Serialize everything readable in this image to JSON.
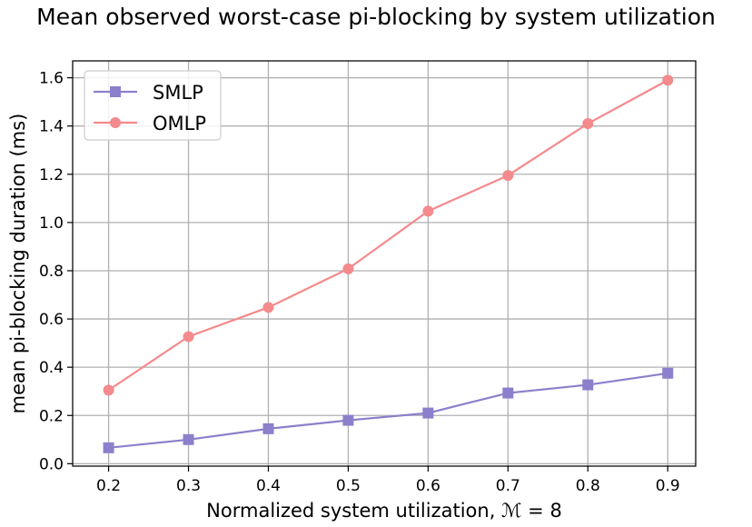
{
  "chart_data": {
    "type": "line",
    "title": "Mean observed worst-case pi-blocking by system utilization",
    "xlabel": "Normalized system utilization, ℳ = 8",
    "ylabel": "mean pi-blocking duration (ms)",
    "x": [
      0.2,
      0.3,
      0.4,
      0.5,
      0.6,
      0.7,
      0.8,
      0.9
    ],
    "x_tick_labels": [
      "0.2",
      "0.3",
      "0.4",
      "0.5",
      "0.6",
      "0.7",
      "0.8",
      "0.9"
    ],
    "y_tick_values": [
      0.0,
      0.2,
      0.4,
      0.6,
      0.8,
      1.0,
      1.2,
      1.4,
      1.6
    ],
    "y_tick_labels": [
      "0.0",
      "0.2",
      "0.4",
      "0.6",
      "0.8",
      "1.0",
      "1.2",
      "1.4",
      "1.6"
    ],
    "xlim": [
      0.155,
      0.935
    ],
    "ylim": [
      -0.01,
      1.67
    ],
    "grid": true,
    "legend_position": "upper-left",
    "series": [
      {
        "name": "SMLP",
        "color": "#8c7fcc",
        "marker": "square",
        "values": [
          0.066,
          0.1,
          0.145,
          0.18,
          0.21,
          0.293,
          0.327,
          0.375
        ]
      },
      {
        "name": "OMLP",
        "color": "#f48a8d",
        "marker": "circle",
        "values": [
          0.305,
          0.527,
          0.648,
          0.808,
          1.047,
          1.195,
          1.41,
          1.59
        ]
      }
    ]
  }
}
